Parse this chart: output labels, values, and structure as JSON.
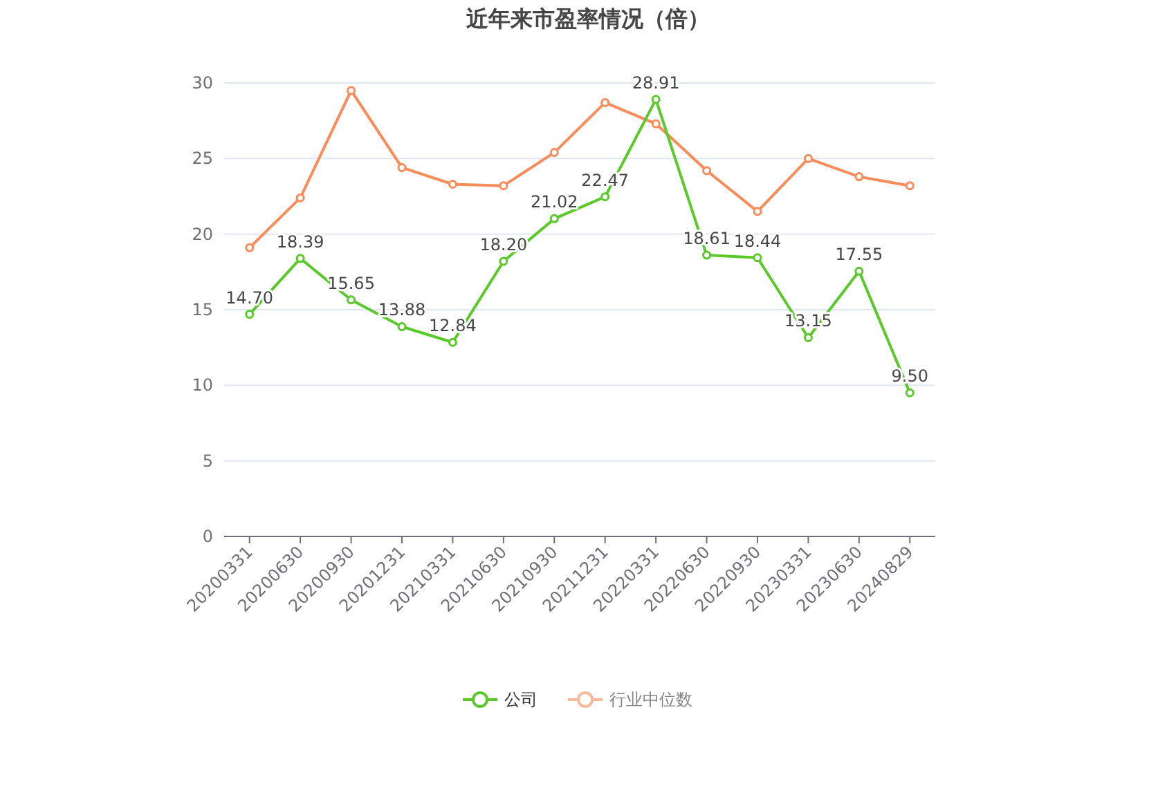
{
  "chart_data": {
    "type": "line",
    "title": "近年来市盈率情况（倍）",
    "categories": [
      "20200331",
      "20200630",
      "20200930",
      "20201231",
      "20210331",
      "20210630",
      "20210930",
      "20211231",
      "20220331",
      "20220630",
      "20220930",
      "20230331",
      "20230630",
      "20240829"
    ],
    "series": [
      {
        "name": "公司",
        "color": "#5ac92a",
        "values": [
          14.7,
          18.39,
          15.65,
          13.88,
          12.84,
          18.2,
          21.02,
          22.47,
          28.91,
          18.61,
          18.44,
          13.15,
          17.55,
          9.5
        ],
        "value_labels": [
          "14.70",
          "18.39",
          "15.65",
          "13.88",
          "12.84",
          "18.20",
          "21.02",
          "22.47",
          "28.91",
          "18.61",
          "18.44",
          "13.15",
          "17.55",
          "9.50"
        ]
      },
      {
        "name": "行业中位数",
        "color": "#fa8c5a",
        "values": [
          19.1,
          22.4,
          29.5,
          24.4,
          23.3,
          23.2,
          25.4,
          28.7,
          27.3,
          24.2,
          21.5,
          25.0,
          23.8,
          23.2
        ]
      }
    ],
    "ylim": [
      0,
      30
    ],
    "yticks": [
      0,
      5,
      10,
      15,
      20,
      25,
      30
    ],
    "grid": "y",
    "legend": "bottom",
    "marker": "circle",
    "line_style": "solid"
  }
}
